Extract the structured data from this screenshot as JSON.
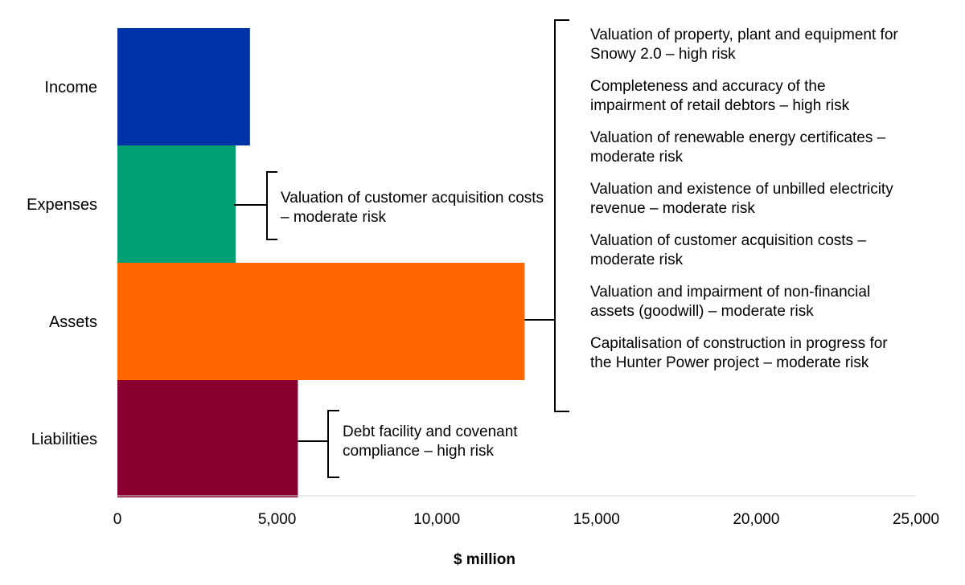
{
  "chart_data": {
    "type": "bar",
    "orientation": "horizontal",
    "categories": [
      "Income",
      "Expenses",
      "Assets",
      "Liabilities"
    ],
    "values": [
      4150,
      3700,
      12750,
      5650
    ],
    "colors": [
      "#0033a8",
      "#009e73",
      "#ff6600",
      "#87002f"
    ],
    "xlabel": "$ million",
    "xlim": [
      0,
      25000
    ],
    "ticks": [
      0,
      5000,
      10000,
      15000,
      20000,
      25000
    ],
    "tick_labels": [
      "0",
      "5,000",
      "10,000",
      "15,000",
      "20,000",
      "25,000"
    ],
    "annotations": {
      "expenses": [
        "Valuation of customer acquisition costs – moderate risk"
      ],
      "assets": [
        "Valuation of property, plant and equipment for Snowy 2.0 – high risk",
        "Completeness and accuracy of the impairment of retail debtors – high risk",
        "Valuation of renewable energy certificates – moderate risk",
        "Valuation and existence of unbilled electricity revenue – moderate risk",
        "Valuation of customer acquisition costs – moderate risk",
        "Valuation and impairment of non-financial assets (goodwill) – moderate risk",
        "Capitalisation of construction in progress for the Hunter Power project – moderate risk"
      ],
      "liabilities": [
        "Debt facility and covenant compliance – high risk"
      ]
    }
  }
}
